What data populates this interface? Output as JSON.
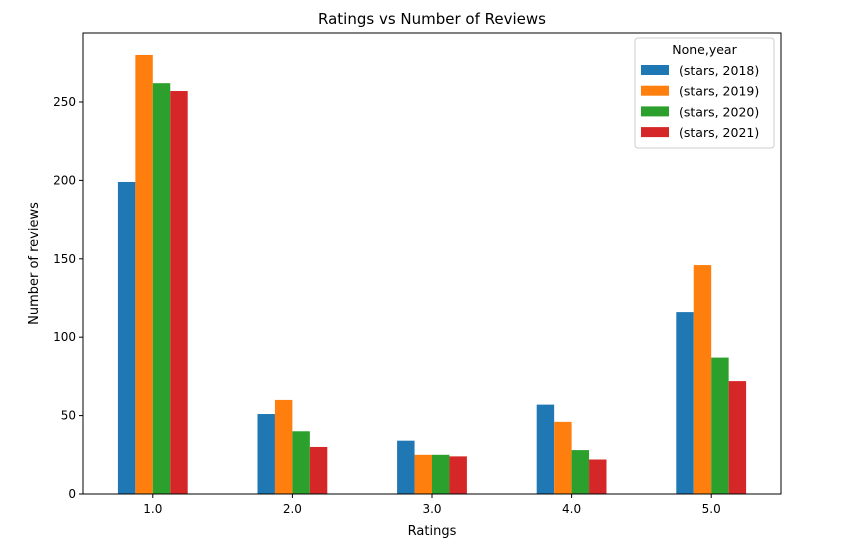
{
  "chart_data": {
    "type": "bar",
    "title": "Ratings vs Number of Reviews",
    "xlabel": "Ratings",
    "ylabel": "Number of reviews",
    "categories": [
      "1.0",
      "2.0",
      "3.0",
      "4.0",
      "5.0"
    ],
    "ylim": [
      0,
      294
    ],
    "yticks": [
      0,
      50,
      100,
      150,
      200,
      250
    ],
    "legend_title": "None,year",
    "legend_position": "top-right",
    "grid": false,
    "series": [
      {
        "name": "(stars, 2018)",
        "color": "#1f77b4",
        "values": [
          199,
          51,
          34,
          57,
          116
        ]
      },
      {
        "name": "(stars, 2019)",
        "color": "#ff7f0e",
        "values": [
          280,
          60,
          25,
          46,
          146
        ]
      },
      {
        "name": "(stars, 2020)",
        "color": "#2ca02c",
        "values": [
          262,
          40,
          25,
          28,
          87
        ]
      },
      {
        "name": "(stars, 2021)",
        "color": "#d62728",
        "values": [
          257,
          30,
          24,
          22,
          72
        ]
      }
    ]
  }
}
